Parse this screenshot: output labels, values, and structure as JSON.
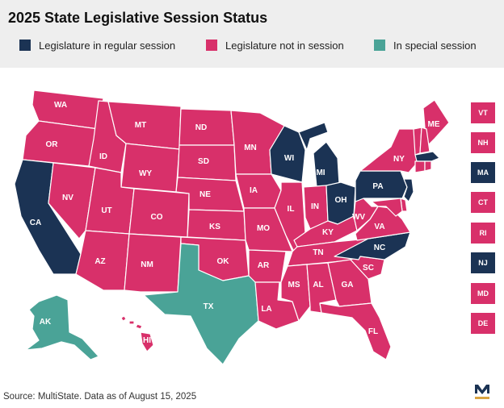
{
  "title": "2025 State Legislative Session Status",
  "colors": {
    "regular": "#1b3354",
    "not_in_session": "#d8306a",
    "special": "#4aa397",
    "logo_gold": "#d9a441",
    "logo_navy": "#1b3354"
  },
  "legend": [
    {
      "label": "Legislature in regular session",
      "status": "regular"
    },
    {
      "label": "Legislature not in session",
      "status": "not_in_session"
    },
    {
      "label": "In special session",
      "status": "special"
    }
  ],
  "states": {
    "WA": "not_in_session",
    "OR": "not_in_session",
    "CA": "regular",
    "NV": "not_in_session",
    "ID": "not_in_session",
    "MT": "not_in_session",
    "WY": "not_in_session",
    "UT": "not_in_session",
    "AZ": "not_in_session",
    "CO": "not_in_session",
    "NM": "not_in_session",
    "ND": "not_in_session",
    "SD": "not_in_session",
    "NE": "not_in_session",
    "KS": "not_in_session",
    "OK": "not_in_session",
    "TX": "special",
    "MN": "not_in_session",
    "IA": "not_in_session",
    "MO": "not_in_session",
    "AR": "not_in_session",
    "LA": "not_in_session",
    "WI": "regular",
    "IL": "not_in_session",
    "MI": "regular",
    "IN": "not_in_session",
    "OH": "regular",
    "KY": "not_in_session",
    "TN": "not_in_session",
    "MS": "not_in_session",
    "AL": "not_in_session",
    "GA": "not_in_session",
    "FL": "not_in_session",
    "SC": "not_in_session",
    "NC": "regular",
    "VA": "not_in_session",
    "WV": "not_in_session",
    "PA": "regular",
    "NY": "not_in_session",
    "ME": "not_in_session",
    "AK": "special",
    "HI": "not_in_session"
  },
  "small_states": [
    {
      "code": "VT",
      "status": "not_in_session"
    },
    {
      "code": "NH",
      "status": "not_in_session"
    },
    {
      "code": "MA",
      "status": "regular"
    },
    {
      "code": "CT",
      "status": "not_in_session"
    },
    {
      "code": "RI",
      "status": "not_in_session"
    },
    {
      "code": "NJ",
      "status": "regular"
    },
    {
      "code": "MD",
      "status": "not_in_session"
    },
    {
      "code": "DE",
      "status": "not_in_session"
    }
  ],
  "source": "Source: MultiState. Data as of August 15, 2025",
  "logo_letter": "M"
}
